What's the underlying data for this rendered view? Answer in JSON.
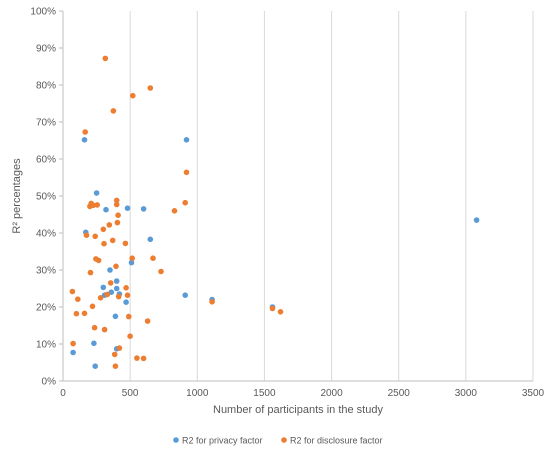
{
  "chart_data": {
    "type": "scatter",
    "xlabel": "Number of participants in the study",
    "ylabel": "R² percentages",
    "xlim": [
      0,
      3500
    ],
    "ylim": [
      0,
      100
    ],
    "x_ticks": [
      0,
      500,
      1000,
      1500,
      2000,
      2500,
      3000,
      3500
    ],
    "x_tick_labels": [
      "0",
      "500",
      "1000",
      "1500",
      "2000",
      "2500",
      "3000",
      "3500"
    ],
    "y_ticks": [
      0,
      10,
      20,
      30,
      40,
      50,
      60,
      70,
      80,
      90,
      100
    ],
    "y_tick_labels": [
      "0%",
      "10%",
      "20%",
      "30%",
      "40%",
      "50%",
      "60%",
      "70%",
      "80%",
      "90%",
      "100%"
    ],
    "grid": "vertical",
    "legend_position": "bottom",
    "series": [
      {
        "name": "R2 for privacy factor",
        "color": "#5B9BD5",
        "points": [
          [
            75,
            7.7
          ],
          [
            160,
            65.2
          ],
          [
            170,
            40.2
          ],
          [
            230,
            10.2
          ],
          [
            240,
            4.0
          ],
          [
            250,
            50.8
          ],
          [
            300,
            25.3
          ],
          [
            310,
            23.2
          ],
          [
            320,
            46.3
          ],
          [
            350,
            30.0
          ],
          [
            360,
            24.0
          ],
          [
            390,
            17.5
          ],
          [
            400,
            27.0
          ],
          [
            400,
            25.0
          ],
          [
            400,
            8.7
          ],
          [
            420,
            23.5
          ],
          [
            470,
            21.3
          ],
          [
            480,
            46.7
          ],
          [
            510,
            32.0
          ],
          [
            600,
            46.5
          ],
          [
            650,
            38.3
          ],
          [
            910,
            23.2
          ],
          [
            920,
            65.2
          ],
          [
            1110,
            22.0
          ],
          [
            1560,
            20.0
          ],
          [
            3080,
            43.5
          ]
        ]
      },
      {
        "name": "R2 for disclosure factor",
        "color": "#ED7D31",
        "points": [
          [
            70,
            24.2
          ],
          [
            75,
            10.1
          ],
          [
            100,
            18.2
          ],
          [
            110,
            22.1
          ],
          [
            160,
            18.3
          ],
          [
            165,
            67.3
          ],
          [
            175,
            39.4
          ],
          [
            200,
            47.2
          ],
          [
            205,
            29.3
          ],
          [
            210,
            48.0
          ],
          [
            220,
            20.2
          ],
          [
            225,
            47.5
          ],
          [
            235,
            14.4
          ],
          [
            240,
            39.1
          ],
          [
            245,
            33.0
          ],
          [
            255,
            47.6
          ],
          [
            265,
            32.6
          ],
          [
            280,
            22.5
          ],
          [
            300,
            41.0
          ],
          [
            305,
            37.1
          ],
          [
            310,
            13.9
          ],
          [
            315,
            87.2
          ],
          [
            330,
            23.4
          ],
          [
            345,
            42.2
          ],
          [
            355,
            26.5
          ],
          [
            370,
            38.0
          ],
          [
            375,
            73.0
          ],
          [
            385,
            7.2
          ],
          [
            390,
            4.0
          ],
          [
            395,
            31.0
          ],
          [
            400,
            48.8
          ],
          [
            400,
            47.7
          ],
          [
            405,
            42.8
          ],
          [
            410,
            44.8
          ],
          [
            415,
            22.8
          ],
          [
            420,
            8.9
          ],
          [
            465,
            37.2
          ],
          [
            470,
            25.2
          ],
          [
            480,
            23.2
          ],
          [
            490,
            17.4
          ],
          [
            500,
            12.1
          ],
          [
            515,
            33.2
          ],
          [
            520,
            77.1
          ],
          [
            550,
            6.2
          ],
          [
            600,
            6.1
          ],
          [
            630,
            16.2
          ],
          [
            650,
            79.2
          ],
          [
            670,
            33.2
          ],
          [
            730,
            29.6
          ],
          [
            830,
            46.0
          ],
          [
            910,
            48.2
          ],
          [
            920,
            56.4
          ],
          [
            1110,
            21.4
          ],
          [
            1560,
            19.6
          ],
          [
            1620,
            18.7
          ]
        ]
      }
    ]
  }
}
